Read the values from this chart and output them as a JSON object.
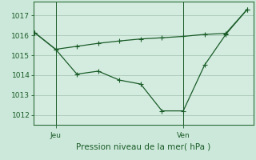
{
  "xlabel": "Pression niveau de la mer( hPa )",
  "background_color": "#cce8da",
  "plot_bg_color": "#d4ece0",
  "grid_color": "#a8c8b8",
  "line_color": "#1a5c28",
  "spine_color": "#2d6e3a",
  "ylim": [
    1011.5,
    1017.7
  ],
  "yticks": [
    1012,
    1013,
    1014,
    1015,
    1016,
    1017
  ],
  "line1_x": [
    0,
    1,
    2,
    3,
    4,
    5,
    6,
    7,
    8,
    9,
    10
  ],
  "line1_y": [
    1016.15,
    1015.3,
    1015.45,
    1015.6,
    1015.72,
    1015.82,
    1015.88,
    1015.95,
    1016.05,
    1016.1,
    1017.3
  ],
  "line2_x": [
    0,
    1,
    2,
    3,
    4,
    5,
    6,
    7,
    8,
    9,
    10
  ],
  "line2_y": [
    1016.15,
    1015.3,
    1014.05,
    1014.2,
    1013.75,
    1013.55,
    1012.2,
    1012.2,
    1014.5,
    1016.05,
    1017.3
  ],
  "jeu_x_pos": 1,
  "ven_x_pos": 7,
  "xlim": [
    -0.05,
    10.3
  ],
  "xlabel_fontsize": 7.5,
  "ytick_fontsize": 6.5,
  "xtick_fontsize": 6.5
}
